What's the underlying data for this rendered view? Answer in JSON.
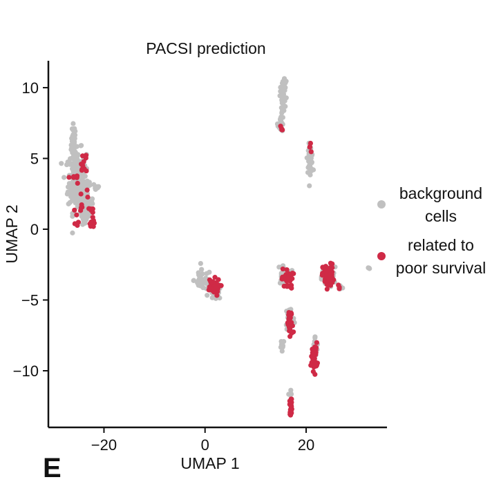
{
  "panel_letter": "E",
  "chart_data": {
    "type": "scatter",
    "title": "PACSI prediction",
    "xlabel": "UMAP 1",
    "ylabel": "UMAP 2",
    "xlim": [
      -31,
      36
    ],
    "ylim": [
      -14,
      11.9
    ],
    "xticks": [
      -20,
      0,
      20
    ],
    "yticks": [
      10,
      5,
      0,
      -5,
      -10
    ],
    "ytick_labels": [
      "10",
      "5",
      "0",
      "−5",
      "−10"
    ],
    "grid": false,
    "legend_position": "right",
    "series": [
      {
        "name_lines": [
          "background",
          "cells"
        ],
        "color": "#c0c0c0",
        "clusters": [
          {
            "cx": -26,
            "cy": 6.0,
            "sx": 0.4,
            "sy": 1.2,
            "n": 40
          },
          {
            "cx": -25.3,
            "cy": 3.4,
            "sx": 1.5,
            "sy": 1.8,
            "n": 240
          },
          {
            "cx": -23.5,
            "cy": 2.0,
            "sx": 1.1,
            "sy": 1.0,
            "n": 40
          },
          {
            "cx": -23.5,
            "cy": 1.0,
            "sx": 0.6,
            "sy": 0.6,
            "n": 20
          },
          {
            "cx": -21.5,
            "cy": 3.0,
            "sx": 0.6,
            "sy": 0.3,
            "n": 8
          },
          {
            "cx": -0.5,
            "cy": -3.6,
            "sx": 1.4,
            "sy": 0.6,
            "n": 40
          },
          {
            "cx": 2.0,
            "cy": -4.4,
            "sx": 1.0,
            "sy": 0.5,
            "n": 40
          },
          {
            "cx": 15.6,
            "cy": 10.2,
            "sx": 0.5,
            "sy": 0.3,
            "n": 20
          },
          {
            "cx": 15.5,
            "cy": 9.0,
            "sx": 0.4,
            "sy": 0.7,
            "n": 25
          },
          {
            "cx": 15.0,
            "cy": 7.5,
            "sx": 0.5,
            "sy": 0.5,
            "n": 20
          },
          {
            "cx": 20.8,
            "cy": 5.0,
            "sx": 0.45,
            "sy": 0.8,
            "n": 45
          },
          {
            "cx": 15.5,
            "cy": -3.2,
            "sx": 0.9,
            "sy": 0.6,
            "n": 30
          },
          {
            "cx": 24.4,
            "cy": -3.4,
            "sx": 1.1,
            "sy": 0.6,
            "n": 40
          },
          {
            "cx": 26.8,
            "cy": -4.1,
            "sx": 0.4,
            "sy": 0.2,
            "n": 8
          },
          {
            "cx": 32.5,
            "cy": -2.8,
            "sx": 0.3,
            "sy": 0.15,
            "n": 4
          },
          {
            "cx": 16.8,
            "cy": -6.3,
            "sx": 0.7,
            "sy": 0.8,
            "n": 30
          },
          {
            "cx": 15.3,
            "cy": -8.1,
            "sx": 0.4,
            "sy": 0.3,
            "n": 12
          },
          {
            "cx": 21.8,
            "cy": -8.5,
            "sx": 0.5,
            "sy": 0.8,
            "n": 20
          },
          {
            "cx": 16.9,
            "cy": -11.7,
            "sx": 0.2,
            "sy": 0.3,
            "n": 6
          }
        ]
      },
      {
        "name_lines": [
          "related to",
          "poor survival"
        ],
        "color": "#cf2a46",
        "clusters": [
          {
            "cx": -26,
            "cy": 3.7,
            "sx": 0.7,
            "sy": 0.1,
            "n": 6
          },
          {
            "cx": -24,
            "cy": 4.8,
            "sx": 0.8,
            "sy": 0.8,
            "n": 10
          },
          {
            "cx": -24.5,
            "cy": 2.2,
            "sx": 0.9,
            "sy": 1.2,
            "n": 10
          },
          {
            "cx": -22.2,
            "cy": 1.0,
            "sx": 0.5,
            "sy": 0.7,
            "n": 12
          },
          {
            "cx": -25.5,
            "cy": 0.6,
            "sx": 0.4,
            "sy": 0.4,
            "n": 4
          },
          {
            "cx": 1.5,
            "cy": -4.1,
            "sx": 1.2,
            "sy": 0.5,
            "n": 45
          },
          {
            "cx": 15.1,
            "cy": 7.1,
            "sx": 0.2,
            "sy": 0.2,
            "n": 4
          },
          {
            "cx": 20.8,
            "cy": 5.8,
            "sx": 0.3,
            "sy": 0.3,
            "n": 4
          },
          {
            "cx": 16.3,
            "cy": -3.5,
            "sx": 0.9,
            "sy": 0.6,
            "n": 30
          },
          {
            "cx": 24.4,
            "cy": -3.3,
            "sx": 0.9,
            "sy": 0.7,
            "n": 60
          },
          {
            "cx": 16.8,
            "cy": -6.8,
            "sx": 0.5,
            "sy": 0.8,
            "n": 30
          },
          {
            "cx": 21.6,
            "cy": -9.0,
            "sx": 0.5,
            "sy": 0.8,
            "n": 40
          },
          {
            "cx": 17.0,
            "cy": -12.5,
            "sx": 0.2,
            "sy": 0.5,
            "n": 20
          },
          {
            "cx": 26.5,
            "cy": -4.0,
            "sx": 0.3,
            "sy": 0.2,
            "n": 3
          }
        ]
      }
    ]
  }
}
